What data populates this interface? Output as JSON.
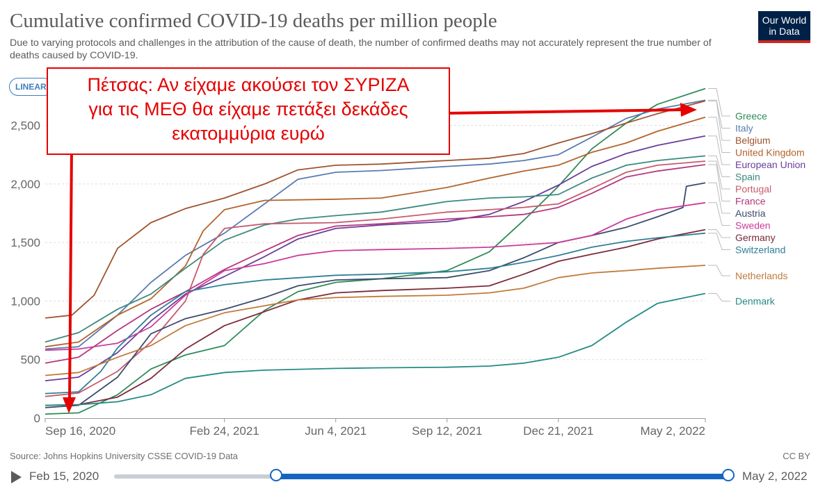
{
  "header": {
    "title": "Cumulative confirmed COVID-19 deaths per million people",
    "subtitle": "Due to varying protocols and challenges in the attribution of the cause of death, the number of confirmed deaths may not accurately represent the true number of deaths caused by COVID-19.",
    "logo_line1": "Our World",
    "logo_line2": "in Data",
    "logo_color": "#002147",
    "logo_accent": "#ce261e",
    "scale_label": "LINEAR"
  },
  "annotation": {
    "line1": "Πέτσας: Αν είχαμε ακούσει τον ΣΥΡΙΖΑ",
    "line2": "για τις ΜΕΘ θα είχαμε πετάξει δεκάδες",
    "line3": "εκατομμύρια ευρώ",
    "color": "#e60000"
  },
  "footer": {
    "source": "Source: Johns Hopkins University CSSE COVID-19 Data",
    "license": "CC BY"
  },
  "timeline": {
    "start_label": "Feb 15, 2020",
    "end_label": "May 2, 2022",
    "slider_start_fraction": 0.264,
    "slider_end_fraction": 1.0,
    "track_color": "#c9ced6",
    "fill_color": "#1565c0"
  },
  "chart_data": {
    "type": "line",
    "title": "Cumulative confirmed COVID-19 deaths per million people",
    "xlabel": "",
    "ylabel": "",
    "ylim": [
      0,
      2800
    ],
    "yticks": [
      0,
      500,
      1000,
      1500,
      2000,
      2500
    ],
    "ytick_labels": [
      "0",
      "500",
      "1,000",
      "1,500",
      "2,000",
      "2,500"
    ],
    "xlim": [
      "2020-09-16",
      "2022-05-02"
    ],
    "xticks": [
      "2020-09-16",
      "2021-02-24",
      "2021-06-04",
      "2021-09-12",
      "2021-12-21",
      "2022-05-02"
    ],
    "xtick_labels": [
      "Sep 16, 2020",
      "Feb 24, 2021",
      "Jun 4, 2021",
      "Sep 12, 2021",
      "Dec 21, 2021",
      "May 2, 2022"
    ],
    "grid": "horizontal-dashed",
    "legend": "right",
    "series": [
      {
        "name": "Greece",
        "color": "#2e8b57",
        "x": [
          "2020-09-16",
          "2020-10-16",
          "2020-11-20",
          "2020-12-20",
          "2021-01-20",
          "2021-02-24",
          "2021-04-01",
          "2021-05-01",
          "2021-06-04",
          "2021-07-15",
          "2021-09-12",
          "2021-10-20",
          "2021-11-20",
          "2021-12-21",
          "2022-01-20",
          "2022-02-20",
          "2022-03-20",
          "2022-05-02"
        ],
        "values": [
          35,
          45,
          200,
          420,
          540,
          620,
          920,
          1080,
          1160,
          1190,
          1260,
          1420,
          1690,
          1980,
          2300,
          2520,
          2680,
          2815
        ]
      },
      {
        "name": "Italy",
        "color": "#5b7bb0",
        "x": [
          "2020-09-16",
          "2020-10-16",
          "2020-11-20",
          "2020-12-20",
          "2021-01-20",
          "2021-02-24",
          "2021-04-01",
          "2021-05-01",
          "2021-06-04",
          "2021-07-15",
          "2021-09-12",
          "2021-10-20",
          "2021-11-20",
          "2021-12-21",
          "2022-01-20",
          "2022-02-20",
          "2022-03-20",
          "2022-05-02"
        ],
        "values": [
          590,
          610,
          880,
          1160,
          1390,
          1580,
          1830,
          2040,
          2100,
          2115,
          2150,
          2170,
          2200,
          2250,
          2400,
          2560,
          2640,
          2715
        ]
      },
      {
        "name": "Belgium",
        "color": "#a0522d",
        "x": [
          "2020-09-16",
          "2020-10-10",
          "2020-10-30",
          "2020-11-20",
          "2020-12-20",
          "2021-01-20",
          "2021-02-24",
          "2021-04-01",
          "2021-05-01",
          "2021-06-04",
          "2021-07-15",
          "2021-09-12",
          "2021-10-20",
          "2021-11-20",
          "2021-12-21",
          "2022-01-20",
          "2022-02-20",
          "2022-03-20",
          "2022-05-02"
        ],
        "values": [
          855,
          880,
          1050,
          1450,
          1670,
          1790,
          1880,
          2000,
          2120,
          2160,
          2170,
          2200,
          2220,
          2260,
          2350,
          2430,
          2520,
          2600,
          2710
        ]
      },
      {
        "name": "United Kingdom",
        "color": "#b4632a",
        "x": [
          "2020-09-16",
          "2020-10-16",
          "2020-11-20",
          "2020-12-20",
          "2021-01-20",
          "2021-02-05",
          "2021-02-24",
          "2021-04-01",
          "2021-06-04",
          "2021-07-15",
          "2021-09-12",
          "2021-10-20",
          "2021-11-20",
          "2021-12-21",
          "2022-01-20",
          "2022-02-20",
          "2022-03-20",
          "2022-05-02"
        ],
        "values": [
          610,
          650,
          880,
          1020,
          1300,
          1600,
          1780,
          1860,
          1870,
          1880,
          1970,
          2050,
          2110,
          2160,
          2270,
          2350,
          2450,
          2570
        ]
      },
      {
        "name": "European Union",
        "color": "#6a3d9a",
        "x": [
          "2020-09-16",
          "2020-10-16",
          "2020-11-20",
          "2020-12-20",
          "2021-01-20",
          "2021-02-24",
          "2021-04-01",
          "2021-05-01",
          "2021-06-04",
          "2021-07-15",
          "2021-09-12",
          "2021-10-20",
          "2021-11-20",
          "2021-12-21",
          "2022-01-20",
          "2022-02-20",
          "2022-03-20",
          "2022-05-02"
        ],
        "values": [
          320,
          350,
          560,
          830,
          1060,
          1210,
          1380,
          1530,
          1620,
          1650,
          1680,
          1740,
          1850,
          1990,
          2150,
          2260,
          2330,
          2410
        ]
      },
      {
        "name": "Spain",
        "color": "#3a8a7d",
        "x": [
          "2020-09-16",
          "2020-10-16",
          "2020-11-20",
          "2020-12-20",
          "2021-01-20",
          "2021-02-24",
          "2021-04-01",
          "2021-05-01",
          "2021-06-04",
          "2021-07-15",
          "2021-09-12",
          "2021-10-20",
          "2021-11-20",
          "2021-12-21",
          "2022-01-20",
          "2022-02-20",
          "2022-03-20",
          "2022-05-02"
        ],
        "values": [
          650,
          730,
          930,
          1060,
          1280,
          1520,
          1650,
          1700,
          1730,
          1760,
          1850,
          1880,
          1890,
          1910,
          2050,
          2160,
          2200,
          2240
        ]
      },
      {
        "name": "Portugal",
        "color": "#c85a6b",
        "x": [
          "2020-09-16",
          "2020-10-16",
          "2020-11-20",
          "2020-12-20",
          "2021-01-20",
          "2021-02-05",
          "2021-02-24",
          "2021-04-01",
          "2021-06-04",
          "2021-07-15",
          "2021-09-12",
          "2021-10-20",
          "2021-11-20",
          "2021-12-21",
          "2022-01-20",
          "2022-02-20",
          "2022-03-20",
          "2022-05-02"
        ],
        "values": [
          185,
          215,
          400,
          650,
          1000,
          1400,
          1620,
          1660,
          1670,
          1700,
          1760,
          1780,
          1800,
          1830,
          1960,
          2100,
          2160,
          2195
        ]
      },
      {
        "name": "France",
        "color": "#b5367f",
        "x": [
          "2020-09-16",
          "2020-10-16",
          "2020-11-20",
          "2020-12-20",
          "2021-01-20",
          "2021-02-24",
          "2021-04-01",
          "2021-05-01",
          "2021-06-04",
          "2021-07-15",
          "2021-09-12",
          "2021-10-20",
          "2021-11-20",
          "2021-12-21",
          "2022-01-20",
          "2022-02-20",
          "2022-03-20",
          "2022-05-02"
        ],
        "values": [
          470,
          520,
          750,
          930,
          1080,
          1270,
          1430,
          1560,
          1640,
          1660,
          1700,
          1720,
          1740,
          1800,
          1920,
          2060,
          2110,
          2165
        ]
      },
      {
        "name": "Austria",
        "color": "#3b4b6b",
        "x": [
          "2020-09-16",
          "2020-10-16",
          "2020-11-20",
          "2020-12-20",
          "2021-01-20",
          "2021-02-24",
          "2021-04-01",
          "2021-05-01",
          "2021-06-04",
          "2021-07-15",
          "2021-09-12",
          "2021-10-20",
          "2021-11-20",
          "2021-12-21",
          "2022-01-20",
          "2022-02-20",
          "2022-03-20",
          "2022-04-12",
          "2022-04-15",
          "2022-05-02"
        ],
        "values": [
          90,
          110,
          350,
          720,
          850,
          930,
          1030,
          1130,
          1180,
          1190,
          1200,
          1260,
          1370,
          1500,
          1560,
          1630,
          1720,
          1800,
          1980,
          2010
        ]
      },
      {
        "name": "Sweden",
        "color": "#cc3a9a",
        "x": [
          "2020-09-16",
          "2020-10-16",
          "2020-11-20",
          "2020-12-20",
          "2021-01-20",
          "2021-02-24",
          "2021-04-01",
          "2021-05-01",
          "2021-06-04",
          "2021-07-15",
          "2021-09-12",
          "2021-10-20",
          "2021-11-20",
          "2021-12-21",
          "2022-01-20",
          "2022-02-20",
          "2022-03-20",
          "2022-05-02"
        ],
        "values": [
          580,
          590,
          640,
          780,
          1050,
          1260,
          1320,
          1390,
          1430,
          1440,
          1450,
          1460,
          1480,
          1500,
          1560,
          1700,
          1780,
          1840
        ]
      },
      {
        "name": "Germany",
        "color": "#7a2a3a",
        "x": [
          "2020-09-16",
          "2020-10-16",
          "2020-11-20",
          "2020-12-20",
          "2021-01-20",
          "2021-02-24",
          "2021-04-01",
          "2021-05-01",
          "2021-06-04",
          "2021-07-15",
          "2021-09-12",
          "2021-10-20",
          "2021-11-20",
          "2021-12-21",
          "2022-01-20",
          "2022-02-20",
          "2022-03-20",
          "2022-05-02"
        ],
        "values": [
          110,
          115,
          180,
          340,
          590,
          790,
          910,
          1010,
          1070,
          1090,
          1110,
          1130,
          1230,
          1340,
          1400,
          1460,
          1530,
          1610
        ]
      },
      {
        "name": "Switzerland",
        "color": "#2f7f96",
        "x": [
          "2020-09-16",
          "2020-10-16",
          "2020-11-05",
          "2020-11-20",
          "2020-12-20",
          "2021-01-20",
          "2021-02-24",
          "2021-04-01",
          "2021-06-04",
          "2021-07-15",
          "2021-09-12",
          "2021-10-20",
          "2021-11-20",
          "2021-12-21",
          "2022-01-20",
          "2022-02-20",
          "2022-03-20",
          "2022-05-02"
        ],
        "values": [
          210,
          225,
          400,
          600,
          880,
          1080,
          1140,
          1180,
          1220,
          1230,
          1250,
          1280,
          1330,
          1390,
          1460,
          1510,
          1540,
          1580
        ]
      },
      {
        "name": "Netherlands",
        "color": "#c07a3a",
        "x": [
          "2020-09-16",
          "2020-10-16",
          "2020-11-20",
          "2020-12-20",
          "2021-01-20",
          "2021-02-24",
          "2021-04-01",
          "2021-05-01",
          "2021-06-04",
          "2021-07-15",
          "2021-09-12",
          "2021-10-20",
          "2021-11-20",
          "2021-12-21",
          "2022-01-20",
          "2022-02-20",
          "2022-03-20",
          "2022-05-02"
        ],
        "values": [
          365,
          390,
          520,
          620,
          790,
          900,
          960,
          1010,
          1030,
          1040,
          1050,
          1070,
          1110,
          1200,
          1240,
          1260,
          1280,
          1305
        ]
      },
      {
        "name": "Denmark",
        "color": "#258a84",
        "x": [
          "2020-09-16",
          "2020-10-16",
          "2020-11-20",
          "2020-12-20",
          "2021-01-20",
          "2021-02-24",
          "2021-04-01",
          "2021-06-04",
          "2021-07-15",
          "2021-09-12",
          "2021-10-20",
          "2021-11-20",
          "2021-12-21",
          "2022-01-20",
          "2022-02-20",
          "2022-03-20",
          "2022-05-02"
        ],
        "values": [
          110,
          115,
          140,
          200,
          340,
          390,
          410,
          425,
          430,
          435,
          445,
          470,
          520,
          620,
          820,
          980,
          1065
        ]
      }
    ]
  }
}
